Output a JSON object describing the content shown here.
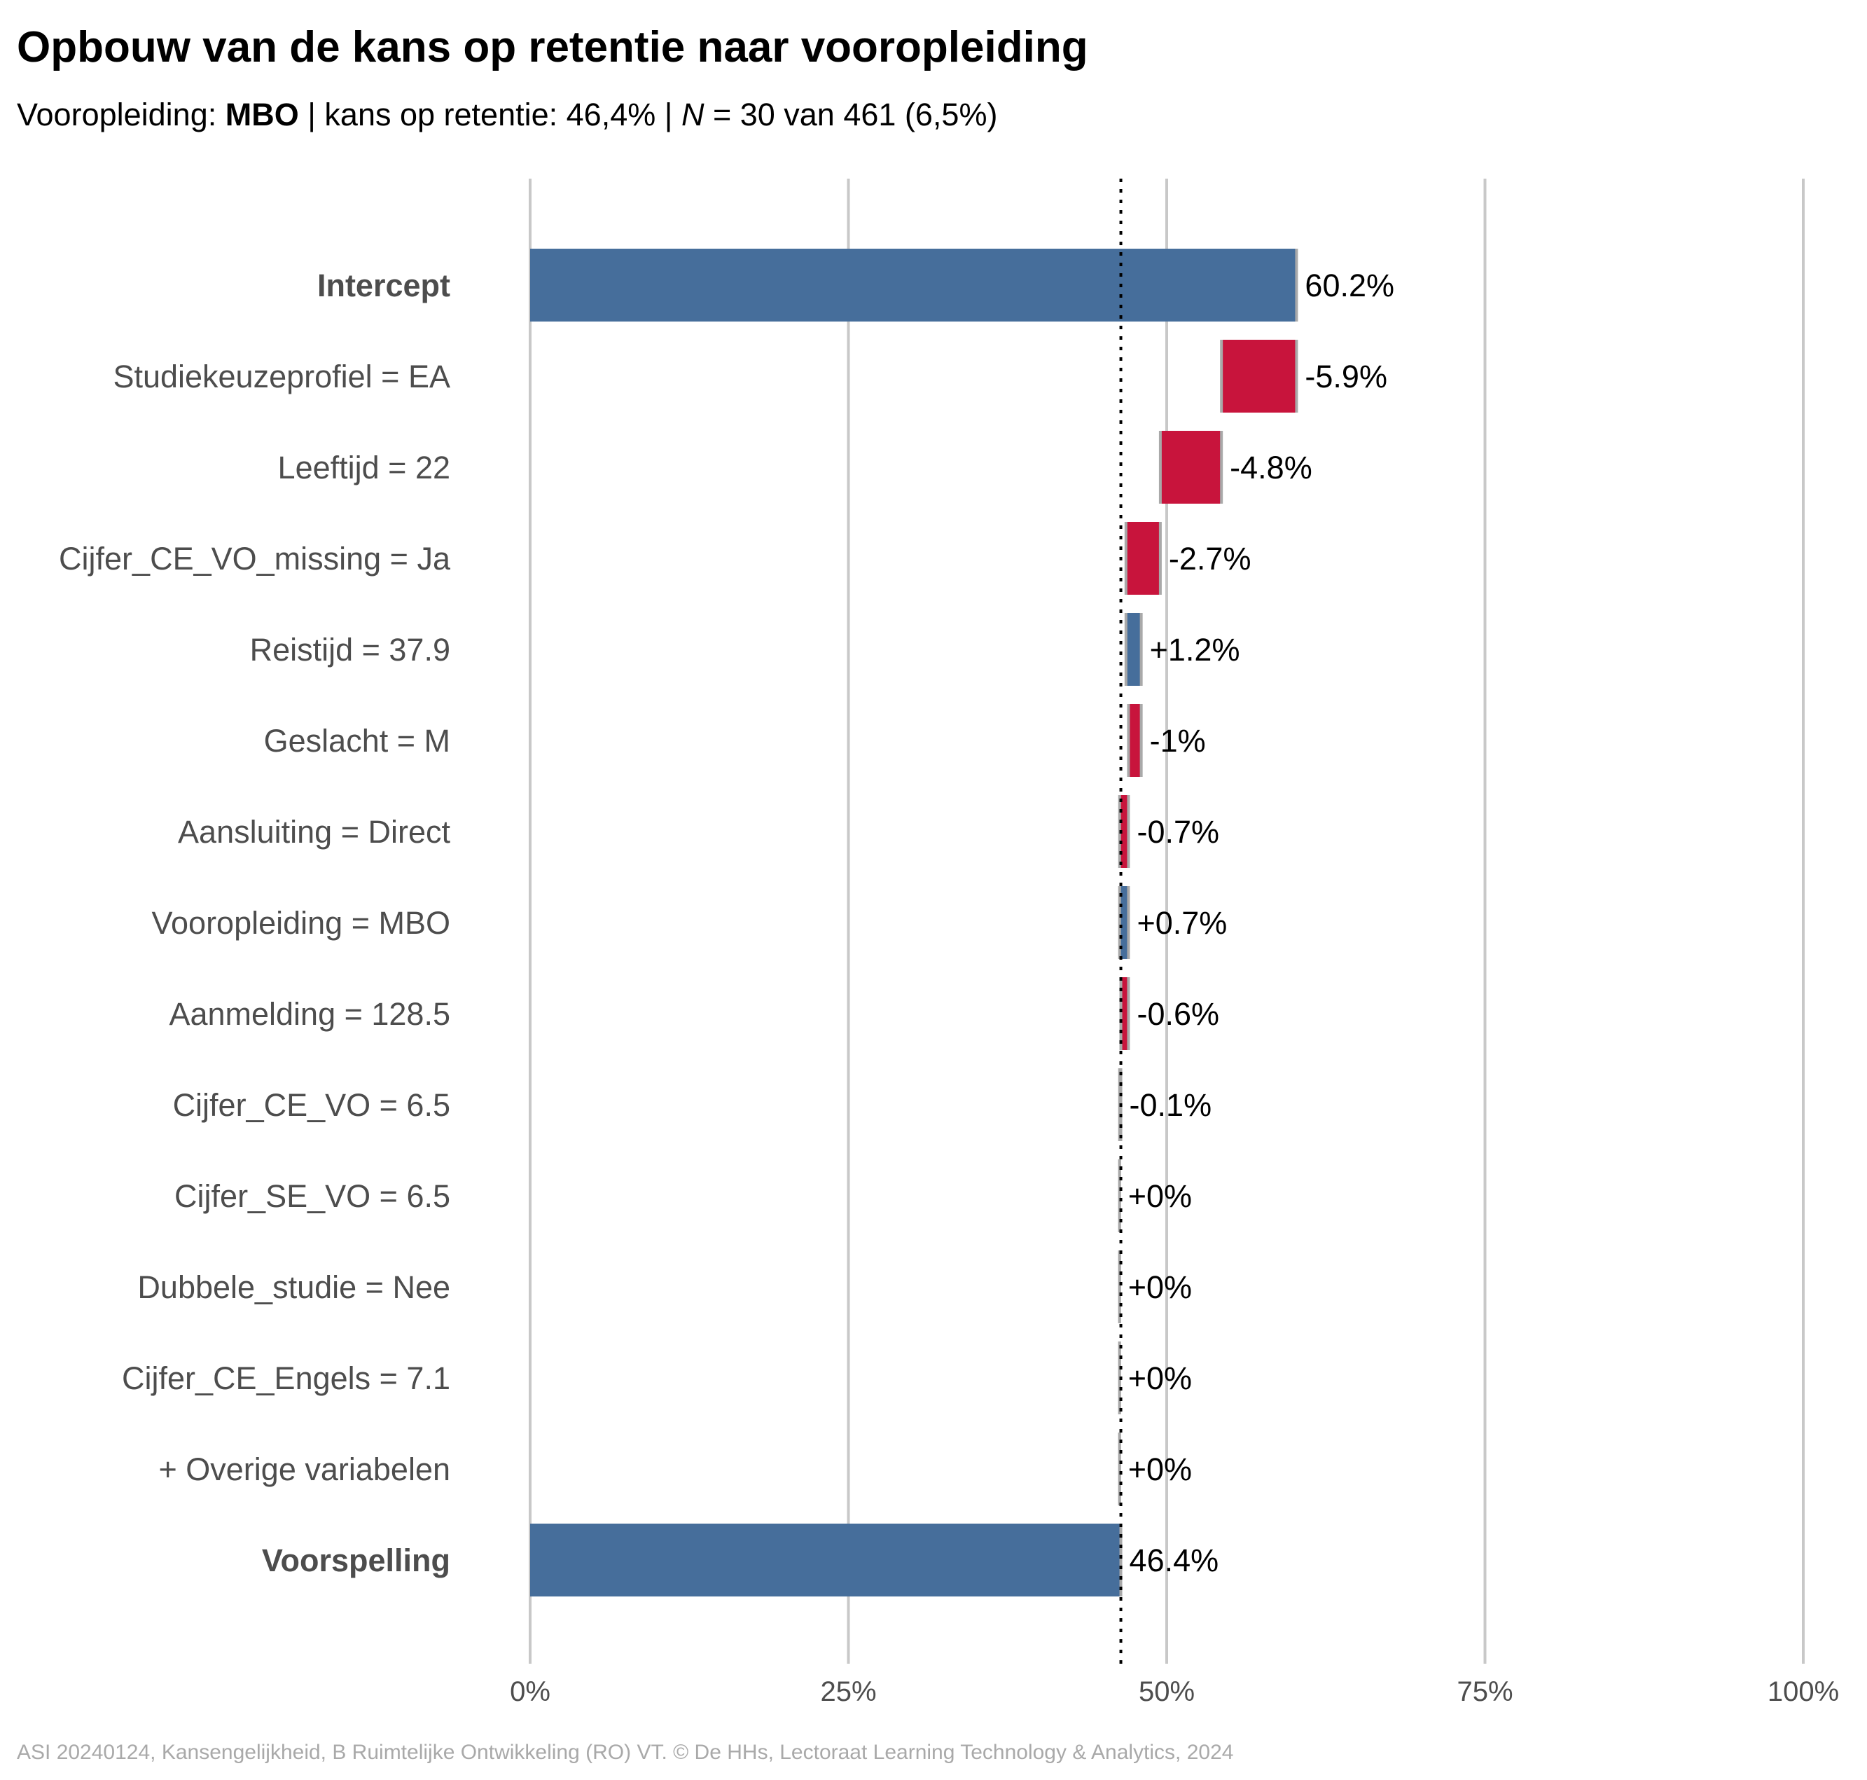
{
  "header": {
    "title": "Opbouw van de kans op retentie naar vooropleiding",
    "subtitle": {
      "prefix": "Vooropleiding: ",
      "group": "MBO",
      "middle": " | kans op retentie: 46,4% | ",
      "n_symbol": "N",
      "suffix": " = 30 van 461 (6,5%)"
    }
  },
  "caption": "ASI 20240124, Kansengelijkheid, B Ruimtelijke Ontwikkeling (RO) VT. © De HHs, Lectoraat Learning Technology & Analytics, 2024",
  "colors": {
    "positive": "#466e9b",
    "negative": "#c8143c",
    "total": "#466e9b",
    "grid": "#c8c8c8",
    "connector": "#a9a9a9",
    "reference_line": "#000000"
  },
  "chart_data": {
    "type": "bar",
    "orientation": "horizontal",
    "variant": "waterfall",
    "xlim": [
      0,
      100
    ],
    "x_ticks": [
      0,
      25,
      50,
      75,
      100
    ],
    "x_tick_labels": [
      "0%",
      "25%",
      "50%",
      "75%",
      "100%"
    ],
    "reference_line": 46.4,
    "grid": true,
    "items": [
      {
        "label": "Intercept",
        "value": 60.2,
        "value_label": "60.2%",
        "kind": "total",
        "bold": true
      },
      {
        "label": "Studiekeuzeprofiel = EA",
        "value": -5.9,
        "value_label": "-5.9%",
        "kind": "delta",
        "bold": false
      },
      {
        "label": "Leeftijd = 22",
        "value": -4.8,
        "value_label": "-4.8%",
        "kind": "delta",
        "bold": false
      },
      {
        "label": "Cijfer_CE_VO_missing = Ja",
        "value": -2.7,
        "value_label": "-2.7%",
        "kind": "delta",
        "bold": false
      },
      {
        "label": "Reistijd = 37.9",
        "value": 1.2,
        "value_label": "+1.2%",
        "kind": "delta",
        "bold": false
      },
      {
        "label": "Geslacht = M",
        "value": -1.0,
        "value_label": "-1%",
        "kind": "delta",
        "bold": false
      },
      {
        "label": "Aansluiting = Direct",
        "value": -0.7,
        "value_label": "-0.7%",
        "kind": "delta",
        "bold": false
      },
      {
        "label": "Vooropleiding = MBO",
        "value": 0.7,
        "value_label": "+0.7%",
        "kind": "delta",
        "bold": false
      },
      {
        "label": "Aanmelding = 128.5",
        "value": -0.6,
        "value_label": "-0.6%",
        "kind": "delta",
        "bold": false
      },
      {
        "label": "Cijfer_CE_VO = 6.5",
        "value": -0.1,
        "value_label": "-0.1%",
        "kind": "delta",
        "bold": false
      },
      {
        "label": "Cijfer_SE_VO = 6.5",
        "value": 0.0,
        "value_label": "+0%",
        "kind": "delta",
        "bold": false
      },
      {
        "label": "Dubbele_studie = Nee",
        "value": 0.0,
        "value_label": "+0%",
        "kind": "delta",
        "bold": false
      },
      {
        "label": "Cijfer_CE_Engels = 7.1",
        "value": 0.0,
        "value_label": "+0%",
        "kind": "delta",
        "bold": false
      },
      {
        "label": "+ Overige variabelen",
        "value": 0.0,
        "value_label": "+0%",
        "kind": "delta",
        "bold": false
      },
      {
        "label": "Voorspelling",
        "value": 46.4,
        "value_label": "46.4%",
        "kind": "total",
        "bold": true
      }
    ]
  }
}
